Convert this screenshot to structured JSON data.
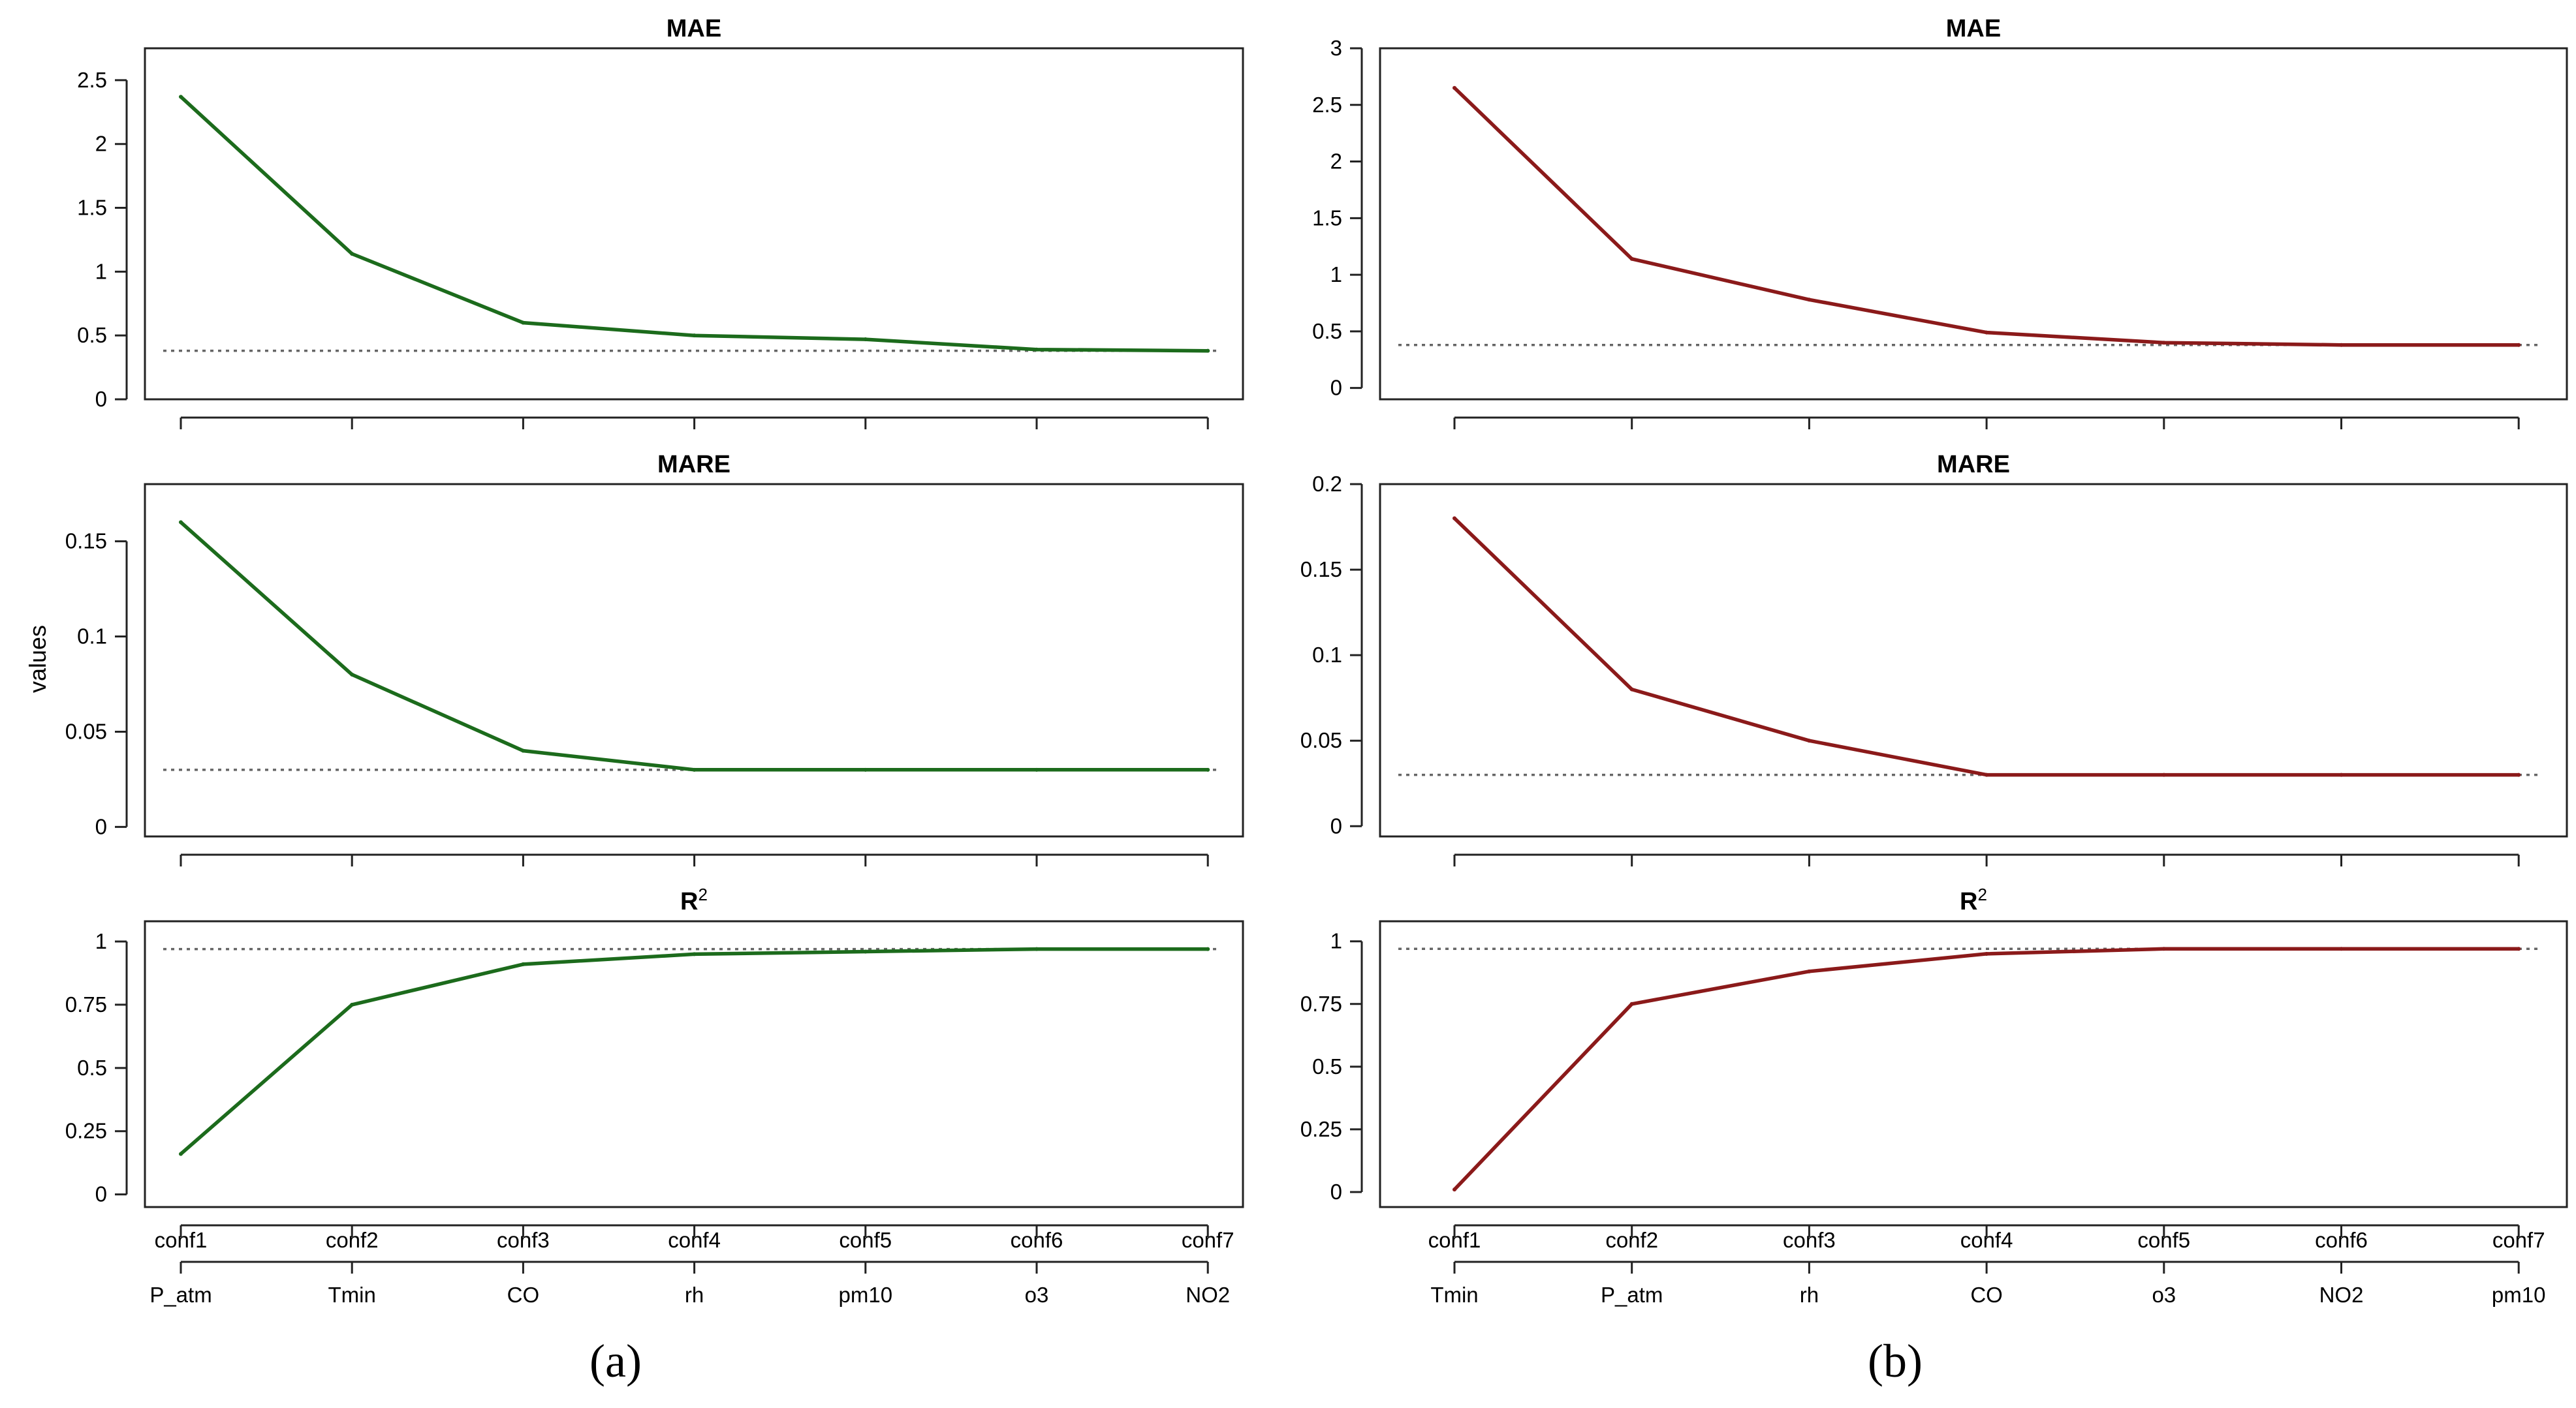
{
  "figure": {
    "y_axis_label": "values"
  },
  "colors": {
    "a": "#1c6b1c",
    "b": "#8b1a1a",
    "reference": "#666666"
  },
  "chart_data": [
    {
      "id": "a-mae",
      "column": "a",
      "type": "line",
      "panel_label": "(a)",
      "title": "MAE",
      "title_sup": "",
      "categories": [
        "conf1",
        "conf2",
        "conf3",
        "conf4",
        "conf5",
        "conf6",
        "conf7"
      ],
      "variables": [
        "P_atm",
        "Tmin",
        "CO",
        "rh",
        "pm10",
        "o3",
        "NO2"
      ],
      "values": [
        2.37,
        1.14,
        0.6,
        0.5,
        0.47,
        0.39,
        0.38
      ],
      "reference": 0.38,
      "ylim": [
        0,
        2.75
      ],
      "yticks": [
        0,
        0.5,
        1,
        1.5,
        2,
        2.5
      ],
      "ytick_labels": [
        "0",
        "0.5",
        "1",
        "1.5",
        "2",
        "2.5"
      ],
      "xlabel": "",
      "ylabel": ""
    },
    {
      "id": "a-mare",
      "column": "a",
      "type": "line",
      "title": "MARE",
      "title_sup": "",
      "categories": [
        "conf1",
        "conf2",
        "conf3",
        "conf4",
        "conf5",
        "conf6",
        "conf7"
      ],
      "values": [
        0.16,
        0.08,
        0.04,
        0.03,
        0.03,
        0.03,
        0.03
      ],
      "reference": 0.03,
      "ylim": [
        -0.005,
        0.18
      ],
      "yticks": [
        0,
        0.05,
        0.1,
        0.15
      ],
      "ytick_labels": [
        "0",
        "0.05",
        "0.1",
        "0.15"
      ],
      "xlabel": "",
      "ylabel": "values"
    },
    {
      "id": "a-r2",
      "column": "a",
      "type": "line",
      "title": "R",
      "title_sup": "2",
      "categories": [
        "conf1",
        "conf2",
        "conf3",
        "conf4",
        "conf5",
        "conf6",
        "conf7"
      ],
      "values": [
        0.16,
        0.75,
        0.91,
        0.95,
        0.96,
        0.97,
        0.97
      ],
      "reference": 0.97,
      "ylim": [
        -0.05,
        1.08
      ],
      "yticks": [
        0,
        0.25,
        0.5,
        0.75,
        1
      ],
      "ytick_labels": [
        "0",
        "0.25",
        "0.5",
        "0.75",
        "1"
      ],
      "xlabel": "",
      "ylabel": ""
    },
    {
      "id": "b-mae",
      "column": "b",
      "type": "line",
      "panel_label": "(b)",
      "title": "MAE",
      "title_sup": "",
      "categories": [
        "conf1",
        "conf2",
        "conf3",
        "conf4",
        "conf5",
        "conf6",
        "conf7"
      ],
      "variables": [
        "Tmin",
        "P_atm",
        "rh",
        "CO",
        "o3",
        "NO2",
        "pm10"
      ],
      "values": [
        2.65,
        1.14,
        0.78,
        0.49,
        0.4,
        0.38,
        0.38
      ],
      "reference": 0.38,
      "ylim": [
        -0.1,
        3.0
      ],
      "yticks": [
        0,
        0.5,
        1,
        1.5,
        2,
        2.5,
        3
      ],
      "ytick_labels": [
        "0",
        "0.5",
        "1",
        "1.5",
        "2",
        "2.5",
        "3"
      ],
      "xlabel": "",
      "ylabel": ""
    },
    {
      "id": "b-mare",
      "column": "b",
      "type": "line",
      "title": "MARE",
      "title_sup": "",
      "categories": [
        "conf1",
        "conf2",
        "conf3",
        "conf4",
        "conf5",
        "conf6",
        "conf7"
      ],
      "values": [
        0.18,
        0.08,
        0.05,
        0.03,
        0.03,
        0.03,
        0.03
      ],
      "reference": 0.03,
      "ylim": [
        -0.006,
        0.2
      ],
      "yticks": [
        0,
        0.05,
        0.1,
        0.15,
        0.2
      ],
      "ytick_labels": [
        "0",
        "0.05",
        "0.1",
        "0.15",
        "0.2"
      ],
      "xlabel": "",
      "ylabel": ""
    },
    {
      "id": "b-r2",
      "column": "b",
      "type": "line",
      "title": "R",
      "title_sup": "2",
      "categories": [
        "conf1",
        "conf2",
        "conf3",
        "conf4",
        "conf5",
        "conf6",
        "conf7"
      ],
      "values": [
        0.01,
        0.75,
        0.88,
        0.95,
        0.97,
        0.97,
        0.97
      ],
      "reference": 0.97,
      "ylim": [
        -0.06,
        1.08
      ],
      "yticks": [
        0,
        0.25,
        0.5,
        0.75,
        1
      ],
      "ytick_labels": [
        "0",
        "0.25",
        "0.5",
        "0.75",
        "1"
      ],
      "xlabel": "",
      "ylabel": ""
    }
  ]
}
